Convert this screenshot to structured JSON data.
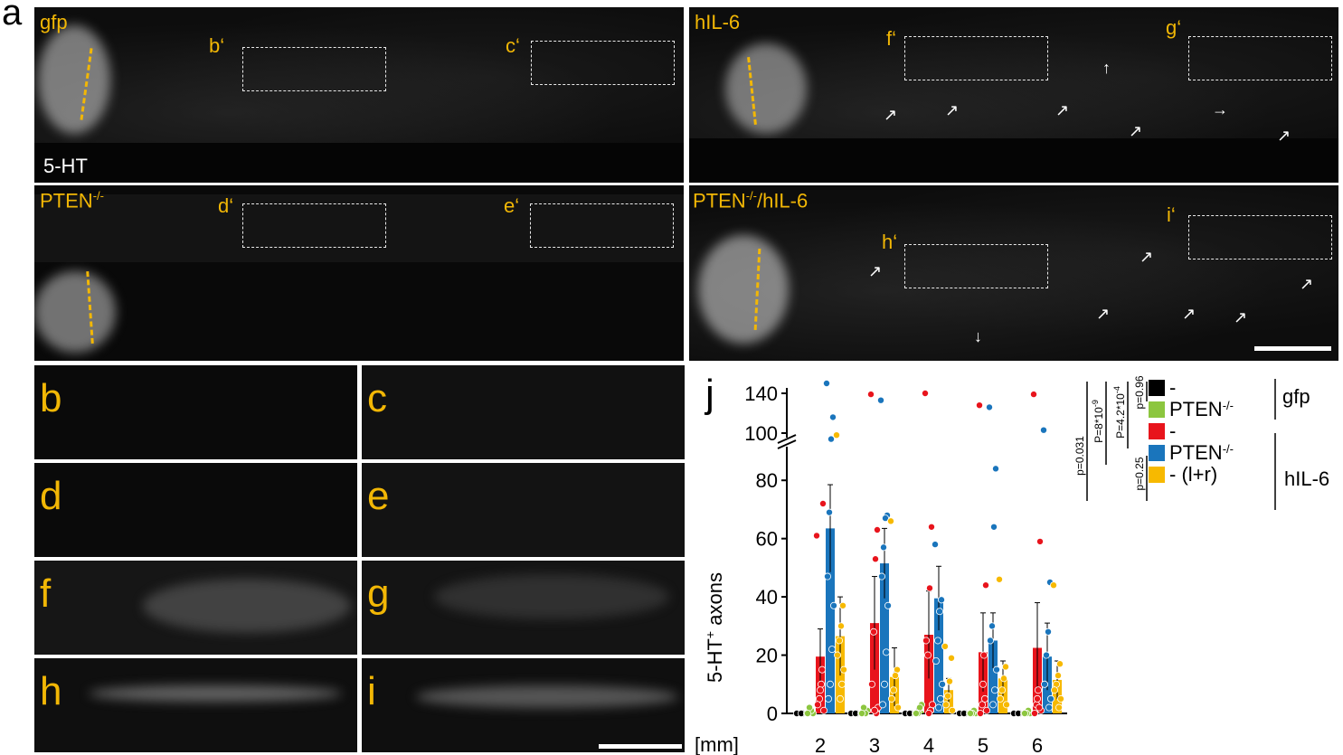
{
  "panel_a_letter": "a",
  "panels_a": [
    {
      "label": "gfp",
      "boxes": [
        "b‘",
        "c‘"
      ],
      "stain": "5-HT"
    },
    {
      "label": "hIL-6",
      "boxes": [
        "f‘",
        "g‘"
      ]
    },
    {
      "label_main": "PTEN",
      "label_sup": "-/-",
      "boxes": [
        "d‘",
        "e‘"
      ]
    },
    {
      "label_main": "PTEN",
      "label_sup": "-/-",
      "label_rest": "/hIL-6",
      "boxes": [
        "h‘",
        "i‘"
      ]
    }
  ],
  "zoom_panels": [
    "b",
    "c",
    "d",
    "e",
    "f",
    "g",
    "h",
    "i"
  ],
  "legend": {
    "gfp_group": "gfp",
    "hil6_group": "hIL-6",
    "entries": [
      {
        "main": "-",
        "sup": "",
        "rest": "",
        "color": "#000000"
      },
      {
        "main": "PTEN",
        "sup": "-/-",
        "rest": "",
        "color": "#8cc63f"
      },
      {
        "main": "-",
        "sup": "",
        "rest": "",
        "color": "#e8141c"
      },
      {
        "main": "PTEN",
        "sup": "-/-",
        "rest": "",
        "color": "#1a75bc"
      },
      {
        "main": "- (l+r)",
        "sup": "",
        "rest": "",
        "color": "#f7b900"
      }
    ],
    "pvalues": [
      "p=0.031",
      "P=8*10",
      "-9",
      "P=4.2*10",
      "-4",
      "p=0.96",
      "p=0.25"
    ]
  },
  "chart_data": {
    "type": "bar",
    "panel_letter": "j",
    "ylabel_main": "5-HT",
    "ylabel_sup": "+",
    "ylabel_rest": " axons",
    "xlabel_unit": "[mm]",
    "categories": [
      "2",
      "3",
      "4",
      "5",
      "6"
    ],
    "y_ticks_lower": [
      "0",
      "20",
      "40",
      "60",
      "80"
    ],
    "y_ticks_upper": [
      "100",
      "140"
    ],
    "ylim_lower": [
      0,
      90
    ],
    "ylim_upper": [
      100,
      150
    ],
    "series": [
      {
        "color": "#000000",
        "values": [
          0,
          0,
          0,
          0,
          0
        ],
        "errors": [
          0,
          0,
          0,
          0,
          0
        ],
        "points": [
          [
            0,
            0,
            0
          ],
          [
            0,
            0,
            0
          ],
          [
            0,
            0,
            0
          ],
          [
            0,
            0,
            0
          ],
          [
            0,
            0,
            0
          ]
        ]
      },
      {
        "color": "#8cc63f",
        "values": [
          0.5,
          0.5,
          0.8,
          0.3,
          0.3
        ],
        "errors": [
          0.5,
          0.5,
          0.8,
          0.3,
          0.3
        ],
        "points": [
          [
            0,
            0,
            1,
            2,
            0
          ],
          [
            0,
            1,
            0,
            2,
            0
          ],
          [
            0,
            3,
            2,
            0,
            0
          ],
          [
            0,
            0,
            1,
            0,
            0
          ],
          [
            0,
            0,
            1,
            0,
            0
          ]
        ]
      },
      {
        "color": "#e8141c",
        "values": [
          19.5,
          31,
          27,
          21,
          22.5
        ],
        "errors": [
          9.5,
          16,
          15,
          13.5,
          15.5
        ],
        "points": [
          [
            61,
            72,
            10,
            5,
            3,
            1,
            15,
            8
          ],
          [
            139,
            63,
            53,
            28,
            10,
            2,
            0,
            1
          ],
          [
            140,
            64,
            43,
            20,
            25,
            3,
            1,
            0
          ],
          [
            128,
            44,
            20,
            3,
            0,
            1,
            5,
            10
          ],
          [
            139,
            59,
            8,
            3,
            0,
            1,
            2,
            5
          ]
        ]
      },
      {
        "color": "#1a75bc",
        "values": [
          63.5,
          51.5,
          39.5,
          25,
          19.5
        ],
        "errors": [
          15,
          12,
          11,
          9.5,
          11.5
        ],
        "points": [
          [
            155,
            116,
            94,
            69,
            47,
            37,
            22,
            10,
            5
          ],
          [
            133,
            68,
            67,
            57,
            47,
            37,
            21,
            10,
            3
          ],
          [
            58,
            39,
            35,
            25,
            18,
            10,
            5,
            2
          ],
          [
            126,
            84,
            64,
            30,
            25,
            15,
            8,
            3
          ],
          [
            103,
            45,
            28,
            20,
            10,
            5,
            2
          ]
        ]
      },
      {
        "color": "#f7b900",
        "values": [
          26.5,
          12.5,
          8,
          12,
          11.5
        ],
        "errors": [
          13.5,
          10,
          4,
          6,
          6.5
        ],
        "points": [
          [
            98,
            37,
            30,
            25,
            20,
            15,
            10,
            5
          ],
          [
            66,
            15,
            13,
            8,
            5,
            2
          ],
          [
            23,
            19,
            11,
            6,
            3,
            1
          ],
          [
            46,
            16,
            12,
            8,
            5,
            3
          ],
          [
            44,
            17,
            13,
            10,
            8,
            5,
            2
          ]
        ]
      }
    ]
  },
  "colors": {
    "accent": "#f2b705",
    "micro_bg": "#0c0c0c"
  }
}
